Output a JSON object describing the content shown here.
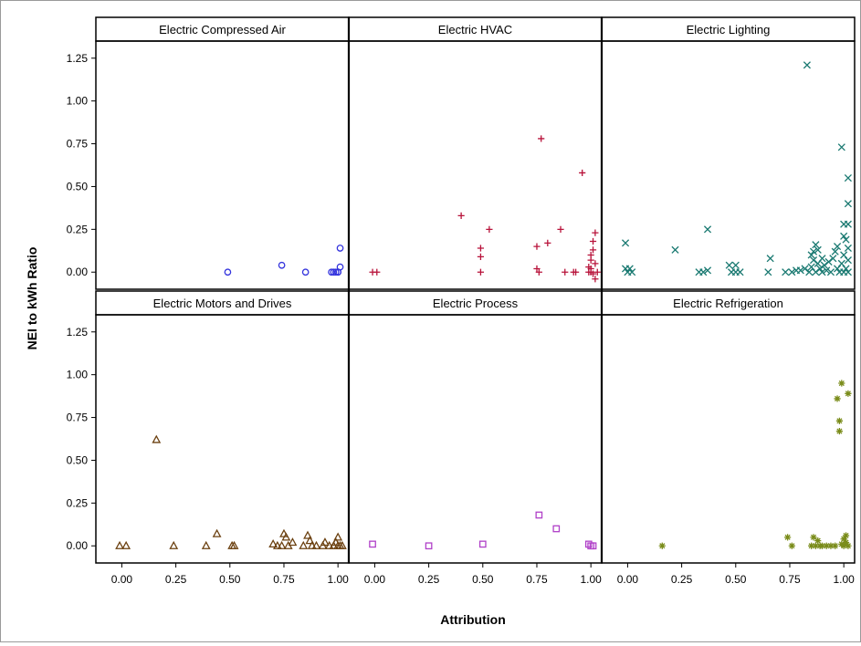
{
  "chart_data": {
    "type": "scatter",
    "xlabel": "Attribution",
    "ylabel": "NEI to kWh Ratio",
    "xlim": [
      -0.12,
      1.05
    ],
    "ylim": [
      -0.1,
      1.35
    ],
    "x_ticks": [
      "0.00",
      "0.25",
      "0.50",
      "0.75",
      "1.00"
    ],
    "y_ticks": [
      "0.00",
      "0.25",
      "0.50",
      "0.75",
      "1.00",
      "1.25"
    ],
    "x_tick_values": [
      0,
      0.25,
      0.5,
      0.75,
      1.0
    ],
    "y_tick_values": [
      0,
      0.25,
      0.5,
      0.75,
      1.0,
      1.25
    ],
    "panels": [
      {
        "name": "Electric Compressed Air",
        "color": "#3333dd",
        "marker": "circle",
        "points": [
          [
            0.49,
            0.0
          ],
          [
            0.74,
            0.04
          ],
          [
            0.85,
            0.0
          ],
          [
            0.97,
            0.0
          ],
          [
            0.98,
            0.0
          ],
          [
            0.99,
            0.0
          ],
          [
            1.0,
            0.0
          ],
          [
            1.01,
            0.03
          ],
          [
            1.01,
            0.14
          ],
          [
            1.0,
            0.0
          ]
        ]
      },
      {
        "name": "Electric HVAC",
        "color": "#b8123a",
        "marker": "plus",
        "points": [
          [
            -0.01,
            0.0
          ],
          [
            0.01,
            0.0
          ],
          [
            0.4,
            0.33
          ],
          [
            0.49,
            0.14
          ],
          [
            0.49,
            0.09
          ],
          [
            0.49,
            0.0
          ],
          [
            0.53,
            0.25
          ],
          [
            0.75,
            0.15
          ],
          [
            0.75,
            0.02
          ],
          [
            0.76,
            0.0
          ],
          [
            0.77,
            0.78
          ],
          [
            0.8,
            0.17
          ],
          [
            0.86,
            0.25
          ],
          [
            0.88,
            0.0
          ],
          [
            0.92,
            0.0
          ],
          [
            0.93,
            0.0
          ],
          [
            0.96,
            0.58
          ],
          [
            0.99,
            0.0
          ],
          [
            1.0,
            0.07
          ],
          [
            1.0,
            0.02
          ],
          [
            1.0,
            0.0
          ],
          [
            1.01,
            0.13
          ],
          [
            1.01,
            0.18
          ],
          [
            1.02,
            0.23
          ],
          [
            1.02,
            0.05
          ],
          [
            1.02,
            -0.04
          ],
          [
            1.03,
            0.0
          ],
          [
            1.01,
            -0.01
          ],
          [
            0.99,
            0.03
          ],
          [
            1.0,
            0.1
          ]
        ]
      },
      {
        "name": "Electric Lighting",
        "color": "#1b7a72",
        "marker": "x",
        "points": [
          [
            -0.01,
            0.17
          ],
          [
            -0.01,
            0.02
          ],
          [
            0.0,
            0.0
          ],
          [
            0.01,
            0.02
          ],
          [
            0.02,
            0.0
          ],
          [
            0.22,
            0.13
          ],
          [
            0.33,
            0.0
          ],
          [
            0.35,
            0.0
          ],
          [
            0.37,
            0.25
          ],
          [
            0.37,
            0.01
          ],
          [
            0.47,
            0.04
          ],
          [
            0.48,
            0.0
          ],
          [
            0.5,
            0.0
          ],
          [
            0.5,
            0.04
          ],
          [
            0.52,
            0.0
          ],
          [
            0.65,
            0.0
          ],
          [
            0.66,
            0.08
          ],
          [
            0.73,
            0.0
          ],
          [
            0.76,
            0.0
          ],
          [
            0.78,
            0.01
          ],
          [
            0.8,
            0.01
          ],
          [
            0.82,
            0.02
          ],
          [
            0.83,
            1.21
          ],
          [
            0.84,
            0.0
          ],
          [
            0.85,
            0.03
          ],
          [
            0.86,
            0.07
          ],
          [
            0.86,
            0.12
          ],
          [
            0.87,
            0.16
          ],
          [
            0.87,
            0.0
          ],
          [
            0.88,
            0.05
          ],
          [
            0.89,
            0.02
          ],
          [
            0.9,
            0.0
          ],
          [
            0.91,
            0.04
          ],
          [
            0.92,
            0.01
          ],
          [
            0.94,
            0.0
          ],
          [
            0.95,
            0.08
          ],
          [
            0.96,
            0.12
          ],
          [
            0.97,
            0.02
          ],
          [
            0.98,
            0.0
          ],
          [
            0.99,
            0.05
          ],
          [
            0.99,
            0.73
          ],
          [
            1.0,
            0.21
          ],
          [
            1.0,
            0.28
          ],
          [
            1.0,
            0.1
          ],
          [
            1.0,
            0.0
          ],
          [
            1.01,
            0.19
          ],
          [
            1.01,
            0.02
          ],
          [
            1.02,
            0.55
          ],
          [
            1.02,
            0.4
          ],
          [
            1.02,
            0.28
          ],
          [
            1.02,
            0.14
          ],
          [
            1.02,
            0.07
          ],
          [
            1.02,
            0.0
          ],
          [
            0.88,
            0.13
          ],
          [
            0.93,
            0.06
          ],
          [
            0.97,
            0.15
          ],
          [
            0.85,
            0.1
          ],
          [
            0.9,
            0.08
          ]
        ]
      },
      {
        "name": "Electric Motors and Drives",
        "color": "#6b4010",
        "marker": "triangle",
        "points": [
          [
            -0.01,
            0.0
          ],
          [
            0.02,
            0.0
          ],
          [
            0.16,
            0.62
          ],
          [
            0.24,
            0.0
          ],
          [
            0.39,
            0.0
          ],
          [
            0.44,
            0.07
          ],
          [
            0.51,
            0.0
          ],
          [
            0.52,
            0.0
          ],
          [
            0.7,
            0.01
          ],
          [
            0.72,
            0.0
          ],
          [
            0.74,
            0.0
          ],
          [
            0.75,
            0.07
          ],
          [
            0.76,
            0.05
          ],
          [
            0.77,
            0.0
          ],
          [
            0.79,
            0.02
          ],
          [
            0.84,
            0.0
          ],
          [
            0.86,
            0.06
          ],
          [
            0.87,
            0.03
          ],
          [
            0.88,
            0.0
          ],
          [
            0.9,
            0.0
          ],
          [
            0.93,
            0.0
          ],
          [
            0.94,
            0.02
          ],
          [
            0.96,
            0.0
          ],
          [
            0.98,
            0.0
          ],
          [
            0.99,
            0.02
          ],
          [
            1.0,
            0.05
          ],
          [
            1.0,
            0.0
          ],
          [
            1.01,
            0.0
          ],
          [
            1.02,
            0.0
          ]
        ]
      },
      {
        "name": "Electric Process",
        "color": "#b040c8",
        "marker": "square",
        "points": [
          [
            -0.01,
            0.01
          ],
          [
            0.25,
            0.0
          ],
          [
            0.5,
            0.01
          ],
          [
            0.76,
            0.18
          ],
          [
            0.84,
            0.1
          ],
          [
            0.99,
            0.01
          ],
          [
            1.0,
            0.0
          ],
          [
            1.01,
            0.0
          ]
        ]
      },
      {
        "name": "Electric Refrigeration",
        "color": "#7a8c1a",
        "marker": "star",
        "points": [
          [
            0.16,
            0.0
          ],
          [
            0.74,
            0.05
          ],
          [
            0.76,
            0.0
          ],
          [
            0.85,
            0.0
          ],
          [
            0.86,
            0.05
          ],
          [
            0.87,
            0.0
          ],
          [
            0.88,
            0.03
          ],
          [
            0.89,
            0.0
          ],
          [
            0.9,
            0.0
          ],
          [
            0.92,
            0.0
          ],
          [
            0.94,
            0.0
          ],
          [
            0.96,
            0.0
          ],
          [
            0.97,
            0.86
          ],
          [
            0.98,
            0.73
          ],
          [
            0.98,
            0.67
          ],
          [
            0.99,
            0.95
          ],
          [
            1.0,
            0.0
          ],
          [
            1.0,
            0.04
          ],
          [
            1.01,
            0.06
          ],
          [
            1.02,
            0.89
          ],
          [
            1.02,
            0.0
          ],
          [
            0.99,
            0.01
          ],
          [
            1.01,
            0.02
          ]
        ]
      }
    ]
  }
}
